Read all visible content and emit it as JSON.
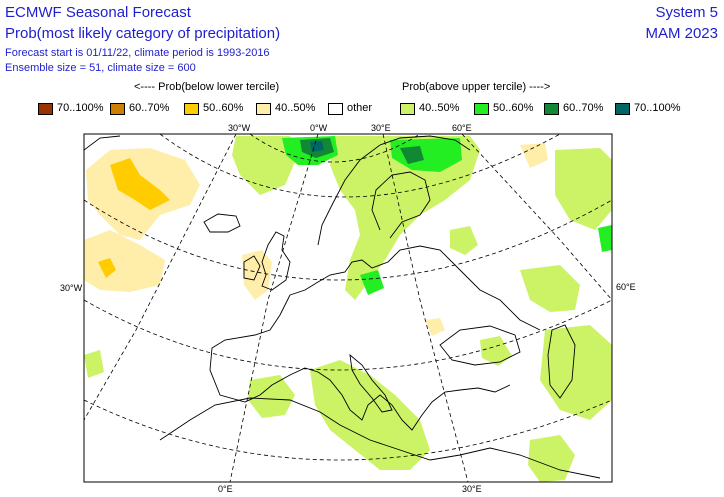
{
  "header": {
    "title": "ECMWF Seasonal Forecast",
    "subtitle": "Prob(most likely category of precipitation)",
    "forecast_line": "Forecast start is 01/11/22, climate period is 1993-2016",
    "ensemble_line": "Ensemble size = 51, climate size = 600",
    "system": "System 5",
    "season": "MAM 2023"
  },
  "legend": {
    "below_label": "<---- Prob(below lower tercile)",
    "above_label": "Prob(above upper tercile) ---->",
    "items": [
      {
        "label": "70..100%",
        "color": "#993300"
      },
      {
        "label": "60..70%",
        "color": "#cc8000"
      },
      {
        "label": "50..60%",
        "color": "#ffcc00"
      },
      {
        "label": "40..50%",
        "color": "#ffeeaa"
      },
      {
        "label": "other",
        "color": "#ffffff"
      },
      {
        "label": "40..50%",
        "color": "#ccf266"
      },
      {
        "label": "50..60%",
        "color": "#22ee22"
      },
      {
        "label": "60..70%",
        "color": "#118833"
      },
      {
        "label": "70..100%",
        "color": "#006666"
      }
    ]
  },
  "map": {
    "coord_labels": {
      "top_30w": "30°W",
      "top_0": "0°W",
      "top_30e": "30°E",
      "top_60e": "60°E",
      "left_30w": "30°W",
      "right_60e": "60°E",
      "bottom_0": "0°E",
      "bottom_30e": "30°E"
    }
  }
}
